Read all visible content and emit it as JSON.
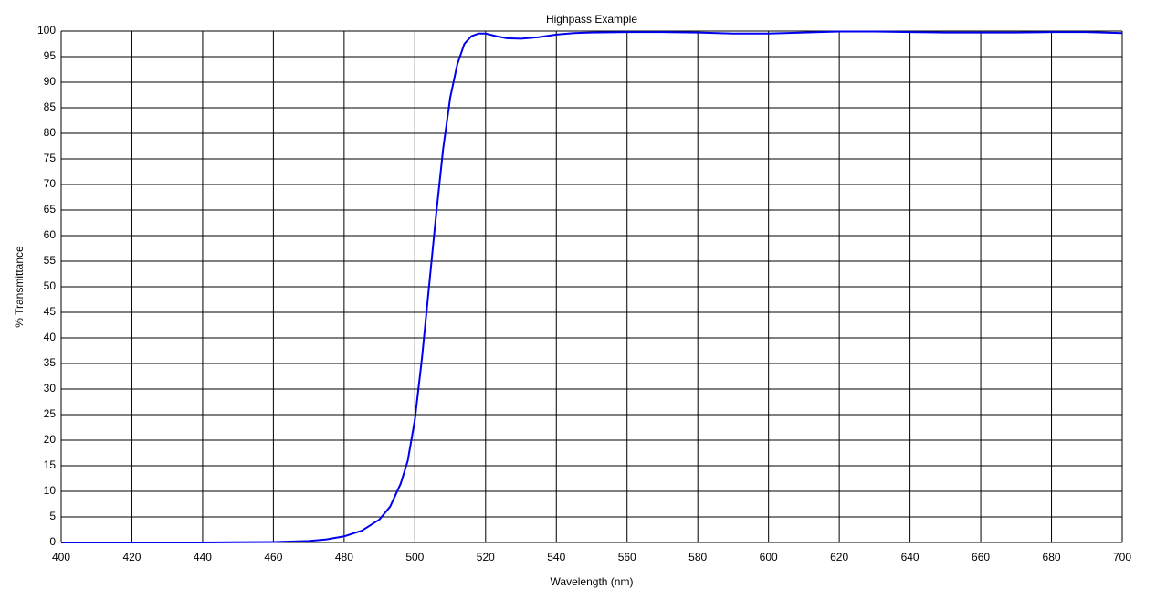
{
  "chart_data": {
    "type": "line",
    "title": "Highpass Example",
    "x_label": "Wavelength (nm)",
    "y_label": "% Transmittance",
    "x": [
      400,
      440,
      460,
      470,
      475,
      480,
      485,
      490,
      493,
      496,
      498,
      500,
      502,
      504,
      506,
      508,
      510,
      512,
      514,
      516,
      518,
      520,
      523,
      526,
      530,
      535,
      540,
      545,
      550,
      560,
      570,
      580,
      590,
      600,
      610,
      620,
      630,
      640,
      650,
      660,
      670,
      680,
      690,
      700
    ],
    "series": [
      {
        "name": "Transmittance",
        "color": "#0000ee",
        "values": [
          0,
          0,
          0.1,
          0.3,
          0.6,
          1.2,
          2.3,
          4.5,
          7,
          11.5,
          16,
          24,
          36,
          50,
          64,
          77,
          87,
          93.5,
          97.5,
          99,
          99.5,
          99.5,
          99,
          98.6,
          98.5,
          98.8,
          99.3,
          99.6,
          99.7,
          99.8,
          99.8,
          99.7,
          99.5,
          99.5,
          99.7,
          99.9,
          99.9,
          99.8,
          99.7,
          99.7,
          99.7,
          99.8,
          99.8,
          99.6
        ]
      }
    ],
    "xlim": [
      400,
      700
    ],
    "ylim": [
      0,
      100
    ],
    "xticks": [
      400,
      420,
      440,
      460,
      480,
      500,
      520,
      540,
      560,
      580,
      600,
      620,
      640,
      660,
      680,
      700
    ],
    "yticks": [
      0,
      5,
      10,
      15,
      20,
      25,
      30,
      35,
      40,
      45,
      50,
      55,
      60,
      65,
      70,
      75,
      80,
      85,
      90,
      95,
      100
    ],
    "grid": true
  }
}
